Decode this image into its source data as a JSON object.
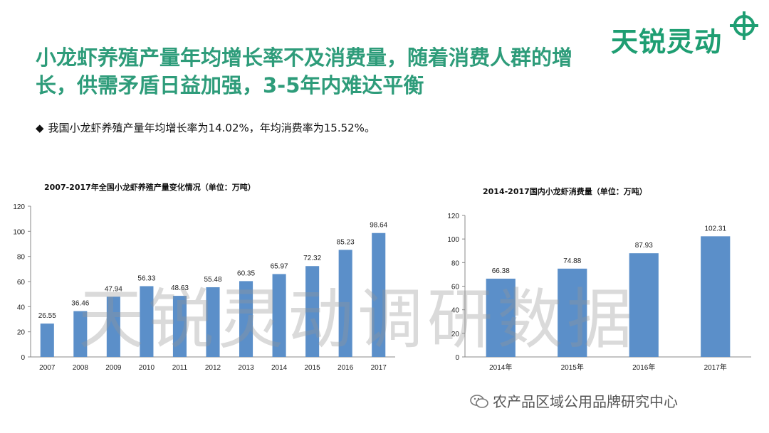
{
  "slide": {
    "title": "小龙虾养殖产量年均增长率不及消费量，随着消费人群的增长，供需矛盾日益加强，3-5年内难达平衡",
    "logo_text": "天锐灵动",
    "bullet_icon": "diamond-icon",
    "bullet_text": "我国小龙虾养殖产量年均增长率为14.02%，年均消费率为15.52%。",
    "watermark": "天锐灵动调研数据",
    "footer_text": "农产品区域公用品牌研究中心",
    "footer_icon": "wechat-icon",
    "colors": {
      "title": "#2e9c7a",
      "logo": "#1e9e72",
      "bar": "#5b8fc9"
    }
  },
  "chart_data": [
    {
      "type": "bar",
      "title": "2007-2017年全国小龙虾养殖产量变化情况（单位：万吨）",
      "categories": [
        "2007",
        "2008",
        "2009",
        "2010",
        "2011",
        "2012",
        "2013",
        "2014",
        "2015",
        "2016",
        "2017"
      ],
      "values": [
        26.55,
        36.46,
        47.94,
        56.33,
        48.63,
        55.48,
        60.35,
        65.97,
        72.32,
        85.23,
        98.64
      ],
      "value_labels": [
        "26.55",
        "36.46",
        "47.94",
        "56.33",
        "48.63",
        "55.48",
        "60.35",
        "65.97",
        "72.32",
        "85.23",
        "98.64"
      ],
      "ylim": [
        0,
        120
      ],
      "yticks": [
        "0",
        "20",
        "40",
        "60",
        "80",
        "100",
        "120"
      ],
      "grid": false
    },
    {
      "type": "bar",
      "title": "2014-2017国内小龙虾消费量（单位：万吨）",
      "categories": [
        "2014年",
        "2015年",
        "2016年",
        "2017年"
      ],
      "values": [
        66.38,
        74.88,
        87.93,
        102.31
      ],
      "value_labels": [
        "66.38",
        "74.88",
        "87.93",
        "102.31"
      ],
      "ylim": [
        0,
        120
      ],
      "yticks": [
        "0",
        "20",
        "40",
        "60",
        "80",
        "100",
        "120"
      ],
      "grid": false
    }
  ]
}
